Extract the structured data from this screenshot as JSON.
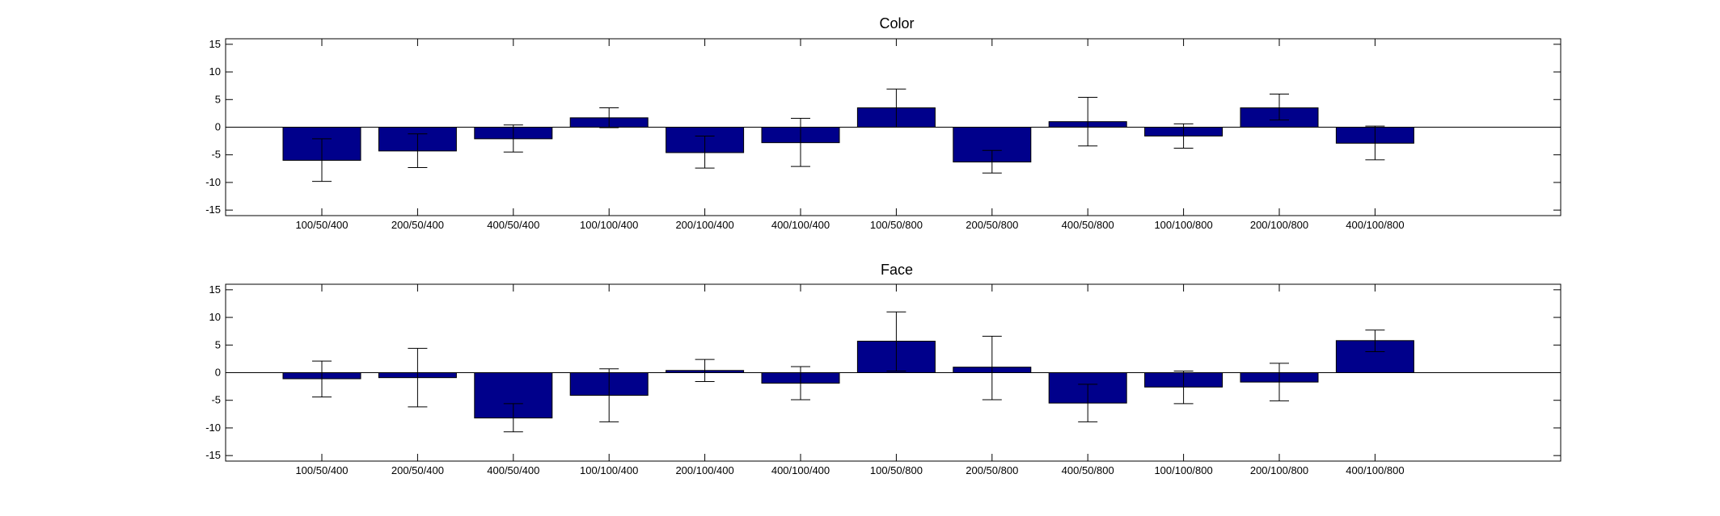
{
  "chart_data": [
    {
      "type": "bar",
      "title": "Color",
      "xlabel": "",
      "ylabel": "",
      "categories": [
        "100/50/400",
        "200/50/400",
        "400/50/400",
        "100/100/400",
        "200/100/400",
        "400/100/400",
        "100/50/800",
        "200/50/800",
        "400/50/800",
        "100/100/800",
        "200/100/800",
        "400/100/800"
      ],
      "values": [
        -6.0,
        -4.3,
        -2.1,
        1.7,
        -4.6,
        -2.8,
        3.5,
        -6.3,
        1.0,
        -1.6,
        3.5,
        -2.9
      ],
      "error_low": [
        -9.8,
        -7.3,
        -4.5,
        -0.1,
        -7.4,
        -7.1,
        0.0,
        -8.3,
        -3.4,
        -3.8,
        1.3,
        -5.9
      ],
      "error_high": [
        -2.1,
        -1.2,
        0.4,
        3.5,
        -1.6,
        1.6,
        6.9,
        -4.2,
        5.4,
        0.6,
        6.0,
        0.2
      ],
      "ylim": [
        -16,
        16
      ],
      "yticks": [
        -15,
        -10,
        -5,
        0,
        5,
        10,
        15
      ],
      "ytick_labels": [
        "-15",
        "-10",
        "-5",
        "0",
        "5",
        "10",
        "15"
      ],
      "grid": false,
      "bar_color": "#00008b"
    },
    {
      "type": "bar",
      "title": "Face",
      "xlabel": "",
      "ylabel": "",
      "categories": [
        "100/50/400",
        "200/50/400",
        "400/50/400",
        "100/100/400",
        "200/100/400",
        "400/100/400",
        "100/50/800",
        "200/50/800",
        "400/50/800",
        "100/100/800",
        "200/100/800",
        "400/100/800"
      ],
      "values": [
        -1.1,
        -0.9,
        -8.2,
        -4.1,
        0.4,
        -1.9,
        5.7,
        1.0,
        -5.5,
        -2.6,
        -1.7,
        5.8
      ],
      "error_low": [
        -4.4,
        -6.2,
        -10.7,
        -8.9,
        -1.6,
        -4.9,
        0.3,
        -4.9,
        -8.9,
        -5.6,
        -5.1,
        3.8
      ],
      "error_high": [
        2.1,
        4.4,
        -5.6,
        0.7,
        2.4,
        1.1,
        11.0,
        6.6,
        -2.1,
        0.3,
        1.7,
        7.7
      ],
      "ylim": [
        -16,
        16
      ],
      "yticks": [
        -15,
        -10,
        -5,
        0,
        5,
        10,
        15
      ],
      "ytick_labels": [
        "-15",
        "-10",
        "-5",
        "0",
        "5",
        "10",
        "15"
      ],
      "grid": false,
      "bar_color": "#00008b"
    }
  ]
}
